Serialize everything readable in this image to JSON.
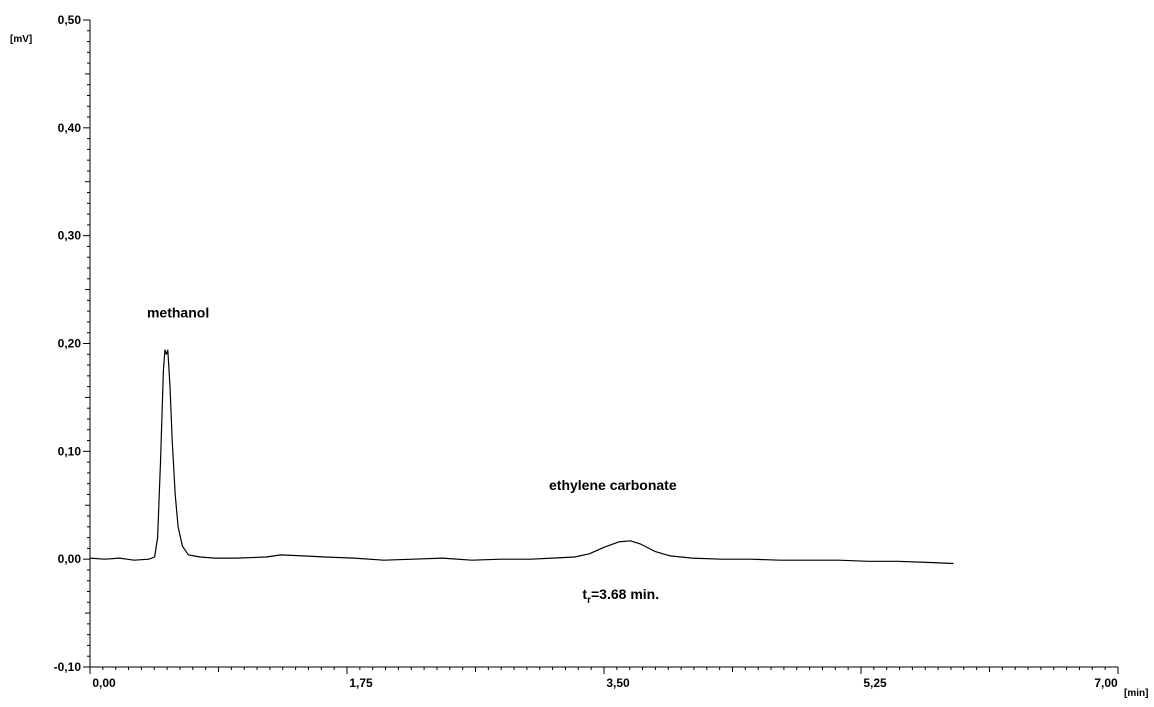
{
  "chart_data": {
    "type": "line",
    "xlabel": "[min]",
    "ylabel": "[mV]",
    "xlim": [
      0,
      7
    ],
    "ylim": [
      -0.1,
      0.5
    ],
    "x_ticks": [
      {
        "value": 0,
        "label": "0,00"
      },
      {
        "value": 1.75,
        "label": "1,75"
      },
      {
        "value": 3.5,
        "label": "3,50"
      },
      {
        "value": 5.25,
        "label": "5,25"
      },
      {
        "value": 7,
        "label": "7,00"
      }
    ],
    "y_ticks": [
      {
        "value": -0.1,
        "label": "-0,10"
      },
      {
        "value": 0,
        "label": "0,00"
      },
      {
        "value": 0.1,
        "label": "0,10"
      },
      {
        "value": 0.2,
        "label": "0,20"
      },
      {
        "value": 0.3,
        "label": "0,30"
      },
      {
        "value": 0.4,
        "label": "0,40"
      },
      {
        "value": 0.5,
        "label": "0,50"
      }
    ],
    "grid": false,
    "series": [
      {
        "color": "#000000",
        "points": [
          [
            0.0,
            0.001
          ],
          [
            0.1,
            0.0
          ],
          [
            0.2,
            0.001
          ],
          [
            0.3,
            -0.001
          ],
          [
            0.4,
            0.0
          ],
          [
            0.44,
            0.002
          ],
          [
            0.46,
            0.02
          ],
          [
            0.48,
            0.09
          ],
          [
            0.5,
            0.175
          ],
          [
            0.51,
            0.194
          ],
          [
            0.52,
            0.19
          ],
          [
            0.53,
            0.194
          ],
          [
            0.545,
            0.16
          ],
          [
            0.56,
            0.11
          ],
          [
            0.58,
            0.06
          ],
          [
            0.6,
            0.03
          ],
          [
            0.63,
            0.012
          ],
          [
            0.67,
            0.004
          ],
          [
            0.75,
            0.002
          ],
          [
            0.85,
            0.001
          ],
          [
            1.0,
            0.001
          ],
          [
            1.2,
            0.002
          ],
          [
            1.3,
            0.004
          ],
          [
            1.45,
            0.003
          ],
          [
            1.6,
            0.002
          ],
          [
            1.8,
            0.001
          ],
          [
            2.0,
            -0.001
          ],
          [
            2.2,
            0.0
          ],
          [
            2.4,
            0.001
          ],
          [
            2.6,
            -0.001
          ],
          [
            2.8,
            0.0
          ],
          [
            3.0,
            0.0
          ],
          [
            3.15,
            0.001
          ],
          [
            3.3,
            0.002
          ],
          [
            3.4,
            0.005
          ],
          [
            3.5,
            0.011
          ],
          [
            3.6,
            0.016
          ],
          [
            3.68,
            0.017
          ],
          [
            3.75,
            0.014
          ],
          [
            3.85,
            0.007
          ],
          [
            3.95,
            0.003
          ],
          [
            4.1,
            0.001
          ],
          [
            4.3,
            0.0
          ],
          [
            4.5,
            0.0
          ],
          [
            4.7,
            -0.001
          ],
          [
            4.9,
            -0.001
          ],
          [
            5.1,
            -0.001
          ],
          [
            5.3,
            -0.002
          ],
          [
            5.5,
            -0.002
          ],
          [
            5.7,
            -0.003
          ],
          [
            5.88,
            -0.004
          ]
        ]
      }
    ],
    "annotations": [
      {
        "text": "methanol",
        "x": 0.6,
        "y": 0.224
      },
      {
        "text": "ethylene carbonate",
        "x": 3.56,
        "y": 0.064
      },
      {
        "prefix": "t",
        "subscript": "r",
        "text": "=3.68 min.",
        "x": 3.68,
        "y": -0.037
      }
    ]
  }
}
